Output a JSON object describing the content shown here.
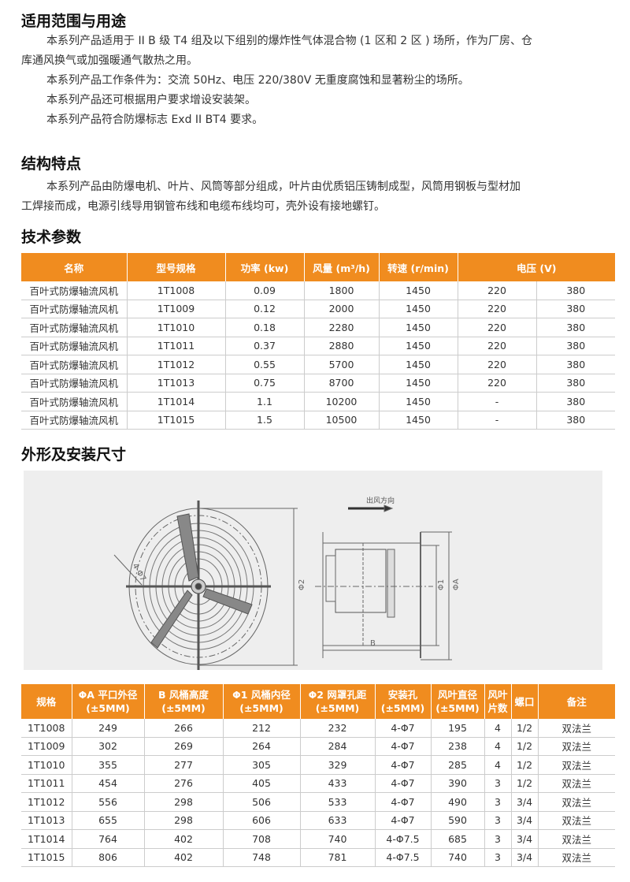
{
  "sections": {
    "usage": {
      "title": "适用范围与用途",
      "lines": [
        "本系列产品适用于 II B 级 T4 组及以下组别的爆炸性气体混合物 (1 区和 2 区 ) 场所，作为厂房、仓",
        "库通风换气或加强暖通气散热之用。",
        "本系列产品工作条件为：交流 50Hz、电压 220/380V 无重度腐蚀和显著粉尘的场所。",
        "本系列产品还可根据用户要求增设安装架。",
        "本系列产品符合防爆标志 Exd II BT4 要求。"
      ]
    },
    "structure": {
      "title": "结构特点",
      "lines": [
        "本系列产品由防爆电机、叶片、风筒等部分组成，叶片由优质铝压铸制成型，风筒用钢板与型材加",
        "工焊接而成，电源引线导用钢管布线和电缆布线均可，壳外设有接地螺钉。"
      ]
    },
    "tech": {
      "title": "技术参数"
    },
    "dims": {
      "title": "外形及安装尺寸"
    }
  },
  "accent": "#f08c1f",
  "table1": {
    "headers": [
      "名称",
      "型号规格",
      "功率 (kw)",
      "风量 (m³/h)",
      "转速 (r/min)",
      "电压 (V)"
    ],
    "rows": [
      [
        "百叶式防爆轴流风机",
        "1T1008",
        "0.09",
        "1800",
        "1450",
        "220",
        "380"
      ],
      [
        "百叶式防爆轴流风机",
        "1T1009",
        "0.12",
        "2000",
        "1450",
        "220",
        "380"
      ],
      [
        "百叶式防爆轴流风机",
        "1T1010",
        "0.18",
        "2280",
        "1450",
        "220",
        "380"
      ],
      [
        "百叶式防爆轴流风机",
        "1T1011",
        "0.37",
        "2880",
        "1450",
        "220",
        "380"
      ],
      [
        "百叶式防爆轴流风机",
        "1T1012",
        "0.55",
        "5700",
        "1450",
        "220",
        "380"
      ],
      [
        "百叶式防爆轴流风机",
        "1T1013",
        "0.75",
        "8700",
        "1450",
        "220",
        "380"
      ],
      [
        "百叶式防爆轴流风机",
        "1T1014",
        "1.1",
        "10200",
        "1450",
        "-",
        "380"
      ],
      [
        "百叶式防爆轴流风机",
        "1T1015",
        "1.5",
        "10500",
        "1450",
        "-",
        "380"
      ]
    ]
  },
  "diagram": {
    "airflow_label": "出风方向",
    "labels": [
      "4-Φ7",
      "Φ2",
      "Φ1",
      "ΦA",
      "B"
    ]
  },
  "table2": {
    "headers": [
      [
        "规格",
        ""
      ],
      [
        "ΦA 平口外径",
        "(±5MM)"
      ],
      [
        "B 风桶高度",
        "(±5MM)"
      ],
      [
        "Φ1 风桶内径",
        "(±5MM)"
      ],
      [
        "Φ2 网罩孔距",
        "(±5MM)"
      ],
      [
        "安装孔",
        "(±5MM)"
      ],
      [
        "风叶直径",
        "(±5MM)"
      ],
      [
        "风叶",
        "片数"
      ],
      [
        "螺口",
        ""
      ],
      [
        "备注",
        ""
      ]
    ],
    "rows": [
      [
        "1T1008",
        "249",
        "266",
        "212",
        "232",
        "4-Φ7",
        "195",
        "4",
        "1/2",
        "双法兰"
      ],
      [
        "1T1009",
        "302",
        "269",
        "264",
        "284",
        "4-Φ7",
        "238",
        "4",
        "1/2",
        "双法兰"
      ],
      [
        "1T1010",
        "355",
        "277",
        "305",
        "329",
        "4-Φ7",
        "285",
        "4",
        "1/2",
        "双法兰"
      ],
      [
        "1T1011",
        "454",
        "276",
        "405",
        "433",
        "4-Φ7",
        "390",
        "3",
        "1/2",
        "双法兰"
      ],
      [
        "1T1012",
        "556",
        "298",
        "506",
        "533",
        "4-Φ7",
        "490",
        "3",
        "3/4",
        "双法兰"
      ],
      [
        "1T1013",
        "655",
        "298",
        "606",
        "633",
        "4-Φ7",
        "590",
        "3",
        "3/4",
        "双法兰"
      ],
      [
        "1T1014",
        "764",
        "402",
        "708",
        "740",
        "4-Φ7.5",
        "685",
        "3",
        "3/4",
        "双法兰"
      ],
      [
        "1T1015",
        "806",
        "402",
        "748",
        "781",
        "4-Φ7.5",
        "740",
        "3",
        "3/4",
        "双法兰"
      ]
    ]
  }
}
